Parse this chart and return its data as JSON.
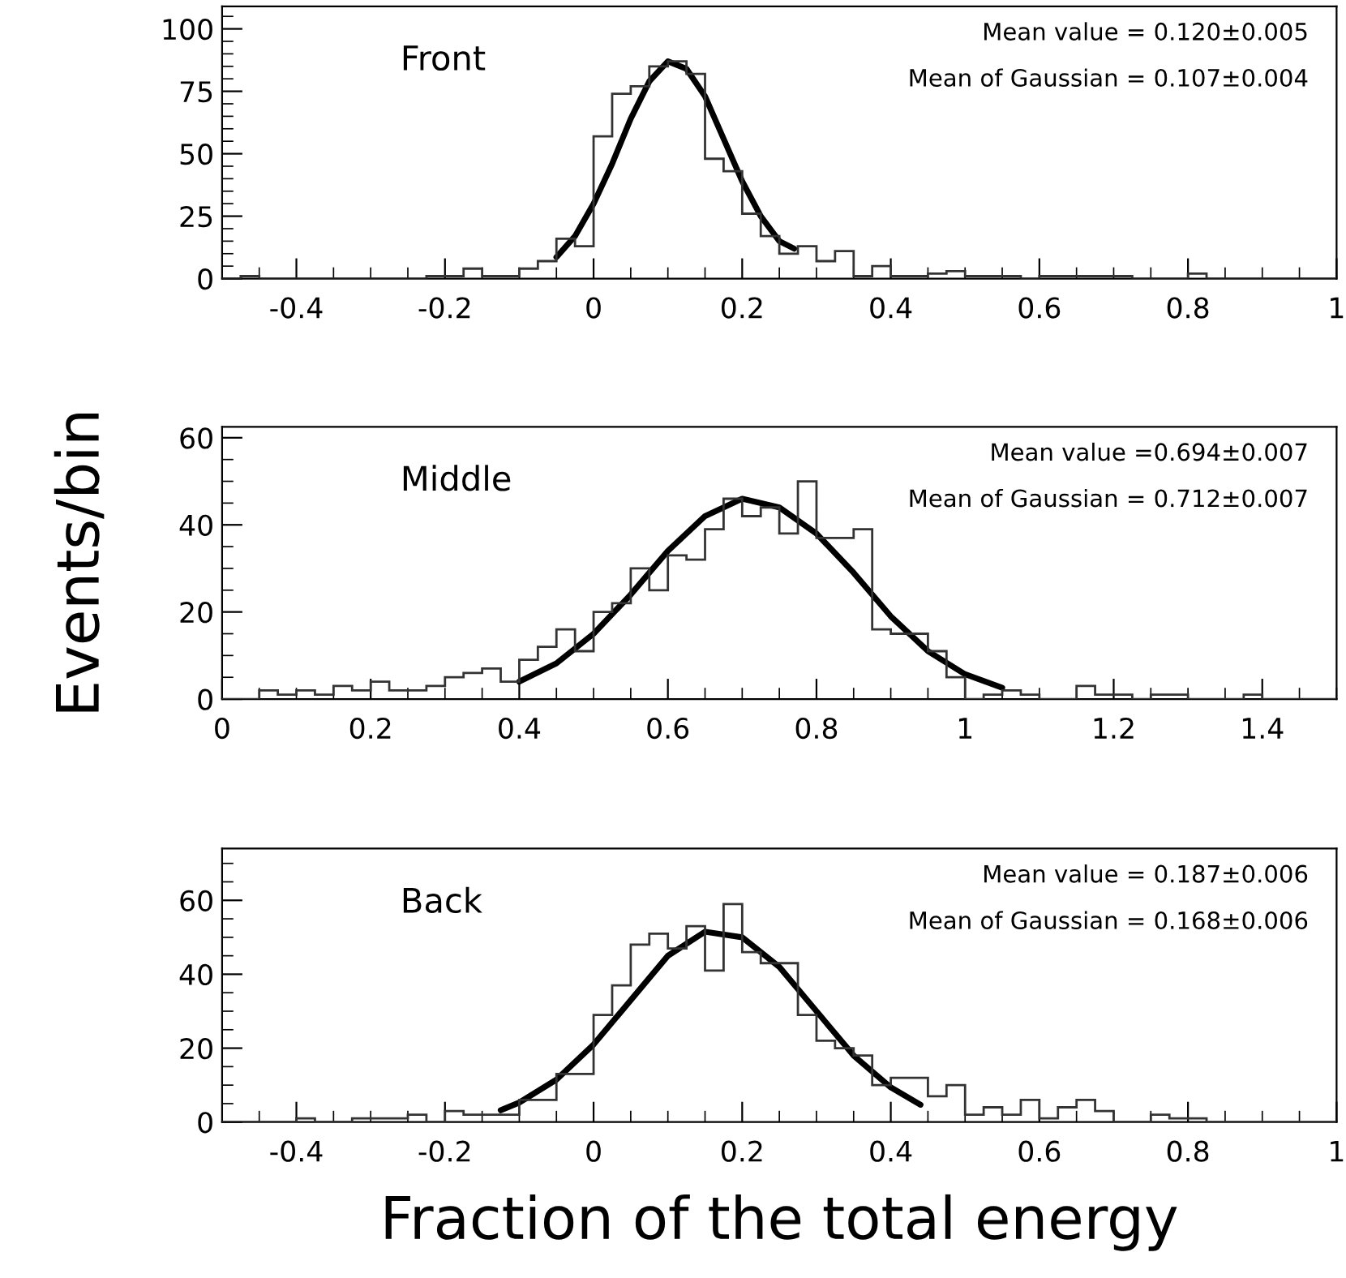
{
  "chart_data": [
    {
      "type": "histogram",
      "title": "Front",
      "bins": [
        -0.5,
        -0.475,
        -0.45,
        -0.425,
        -0.4,
        -0.375,
        -0.35,
        -0.325,
        -0.3,
        -0.275,
        -0.25,
        -0.225,
        -0.2,
        -0.175,
        -0.15,
        -0.125,
        -0.1,
        -0.075,
        -0.05,
        -0.025,
        0,
        0.025,
        0.05,
        0.075,
        0.1,
        0.125,
        0.15,
        0.175,
        0.2,
        0.225,
        0.25,
        0.275,
        0.3,
        0.325,
        0.35,
        0.375,
        0.4,
        0.425,
        0.45,
        0.475,
        0.5,
        0.525,
        0.55,
        0.575,
        0.6,
        0.625,
        0.65,
        0.675,
        0.7,
        0.725,
        0.75,
        0.775,
        0.8,
        0.825,
        0.85,
        0.875,
        0.9,
        0.925,
        0.95,
        0.975,
        1
      ],
      "values": [
        0,
        1,
        0,
        0,
        0,
        0,
        0,
        0,
        0,
        0,
        0,
        1,
        1,
        4,
        1,
        1,
        4,
        7,
        16,
        13,
        57,
        74,
        77,
        85,
        87,
        82,
        48,
        43,
        26,
        17,
        10,
        13,
        7,
        11,
        1,
        5,
        1,
        1,
        2,
        3,
        1,
        1,
        1,
        0,
        1,
        1,
        1,
        1,
        1,
        0,
        0,
        0,
        2,
        0,
        0,
        0,
        0,
        0,
        0,
        0
      ],
      "color": "#333333",
      "series": [
        {
          "type": "line",
          "color": "#000000",
          "x": [
            -0.05,
            -0.025,
            0,
            0.025,
            0.05,
            0.075,
            0.1,
            0.125,
            0.15,
            0.175,
            0.2,
            0.225,
            0.25,
            0.27
          ],
          "values": [
            8.6,
            17,
            30,
            46,
            64,
            79,
            87,
            84,
            73,
            56,
            39,
            25,
            15,
            12
          ]
        }
      ],
      "xlim": [
        -0.5,
        1
      ],
      "ylim": [
        0,
        109
      ],
      "xticks": [
        -0.4,
        -0.2,
        0,
        0.2,
        0.4,
        0.6,
        0.8,
        1
      ],
      "yticks": [
        0,
        25,
        50,
        75,
        100
      ],
      "annotations": [
        "Mean value = 0.120±0.005",
        "Mean of Gaussian = 0.107±0.004"
      ]
    },
    {
      "type": "histogram",
      "title": "Middle",
      "ylabel": "Events/bin",
      "bins": [
        0,
        0.025,
        0.05,
        0.075,
        0.1,
        0.125,
        0.15,
        0.175,
        0.2,
        0.225,
        0.25,
        0.275,
        0.3,
        0.325,
        0.35,
        0.375,
        0.4,
        0.425,
        0.45,
        0.475,
        0.5,
        0.525,
        0.55,
        0.575,
        0.6,
        0.625,
        0.65,
        0.675,
        0.7,
        0.725,
        0.75,
        0.775,
        0.8,
        0.825,
        0.85,
        0.875,
        0.9,
        0.925,
        0.95,
        0.975,
        1,
        1.025,
        1.05,
        1.075,
        1.1,
        1.125,
        1.15,
        1.175,
        1.2,
        1.225,
        1.25,
        1.275,
        1.3,
        1.325,
        1.35,
        1.375,
        1.4,
        1.425,
        1.45,
        1.475,
        1.5
      ],
      "values": [
        0,
        0,
        2,
        1,
        2,
        1,
        3,
        2,
        4,
        2,
        2,
        3,
        5,
        6,
        7,
        4,
        9,
        12,
        16,
        11,
        20,
        22,
        30,
        25,
        33,
        32,
        39,
        46,
        42,
        44,
        38,
        50,
        37,
        37,
        39,
        16,
        15,
        15,
        11,
        5,
        0,
        1,
        2,
        1,
        0,
        0,
        3,
        1,
        1,
        0,
        1,
        1,
        0,
        0,
        0,
        1,
        0,
        0,
        0,
        0
      ],
      "color": "#333333",
      "series": [
        {
          "type": "line",
          "color": "#000000",
          "x": [
            0.4,
            0.45,
            0.5,
            0.55,
            0.6,
            0.65,
            0.7,
            0.75,
            0.8,
            0.85,
            0.9,
            0.95,
            1.0,
            1.05
          ],
          "values": [
            4,
            8.2,
            15,
            24,
            34,
            42,
            46,
            44,
            38,
            29,
            19,
            11,
            5.7,
            2.6
          ]
        }
      ],
      "xlim": [
        0,
        1.5
      ],
      "ylim": [
        0,
        62.5
      ],
      "xticks": [
        0,
        0.2,
        0.4,
        0.6,
        0.8,
        1,
        1.2,
        1.4
      ],
      "yticks": [
        0,
        20,
        40,
        60
      ],
      "annotations": [
        "Mean value =0.694±0.007",
        "Mean of Gaussian = 0.712±0.007"
      ]
    },
    {
      "type": "histogram",
      "title": "Back",
      "xlabel": "Fraction of the total energy",
      "bins": [
        -0.5,
        -0.475,
        -0.45,
        -0.425,
        -0.4,
        -0.375,
        -0.35,
        -0.325,
        -0.3,
        -0.275,
        -0.25,
        -0.225,
        -0.2,
        -0.175,
        -0.15,
        -0.125,
        -0.1,
        -0.075,
        -0.05,
        -0.025,
        0,
        0.025,
        0.05,
        0.075,
        0.1,
        0.125,
        0.15,
        0.175,
        0.2,
        0.225,
        0.25,
        0.275,
        0.3,
        0.325,
        0.35,
        0.375,
        0.4,
        0.425,
        0.45,
        0.475,
        0.5,
        0.525,
        0.55,
        0.575,
        0.6,
        0.625,
        0.65,
        0.675,
        0.7,
        0.725,
        0.75,
        0.775,
        0.8,
        0.825,
        0.85,
        0.875,
        0.9,
        0.925,
        0.95,
        0.975,
        1
      ],
      "values": [
        0,
        0,
        0,
        0,
        1,
        0,
        0,
        1,
        1,
        1,
        2,
        0,
        3,
        2,
        2,
        2,
        6,
        6,
        13,
        13,
        29,
        37,
        48,
        51,
        47,
        53,
        41,
        59,
        46,
        43,
        43,
        29,
        22,
        20,
        18,
        10,
        12,
        12,
        7,
        10,
        2,
        4,
        2,
        6,
        1,
        4,
        6,
        3,
        0,
        0,
        2,
        1,
        1,
        0,
        0,
        0,
        0,
        0,
        0,
        0
      ],
      "color": "#333333",
      "series": [
        {
          "type": "line",
          "color": "#000000",
          "x": [
            -0.125,
            -0.1,
            -0.05,
            0,
            0.05,
            0.1,
            0.15,
            0.2,
            0.25,
            0.3,
            0.35,
            0.4,
            0.44
          ],
          "values": [
            3.2,
            5.3,
            11.5,
            21,
            33,
            45,
            51.5,
            50,
            42,
            30,
            18,
            9.4,
            4.7
          ]
        }
      ],
      "xlim": [
        -0.5,
        1
      ],
      "ylim": [
        0,
        74
      ],
      "xticks": [
        -0.4,
        -0.2,
        0,
        0.2,
        0.4,
        0.6,
        0.8,
        1
      ],
      "yticks": [
        0,
        20,
        40,
        60
      ],
      "annotations": [
        "Mean value = 0.187±0.006",
        "Mean of Gaussian = 0.168±0.006"
      ]
    }
  ]
}
